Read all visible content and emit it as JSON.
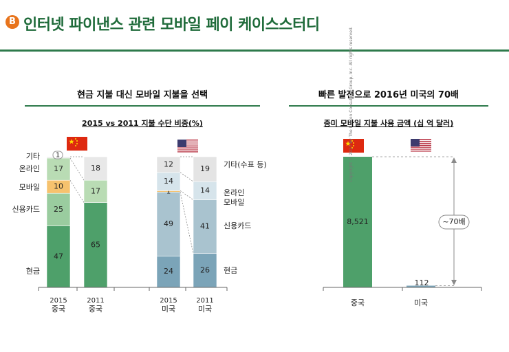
{
  "header": {
    "badge": "B",
    "title": "인터넷 파이낸스 관련 모바일 페이 케이스스터디"
  },
  "left_section": {
    "title": "현금 지불 대신 모바일 지불을 선택",
    "subtitle": "2015 vs 2011 지불 수단 비중(%)"
  },
  "right_section": {
    "title": "빠른 발전으로 2016년 미국의 70배",
    "subtitle": "중미 모바일 지불 사용 금액 (십 억 달러)"
  },
  "copyright": "Copyright © 2017 by The Boston Consulting Group, Inc. All rights reserved.",
  "flags": {
    "china": "china-flag",
    "usa": "usa-flag"
  },
  "colors": {
    "cash": "#4ea06a",
    "credit_cn": "#9acc9f",
    "mobile_cn": "#f6c26e",
    "online_cn": "#b9dcb4",
    "other_cn": "#e8e8e8",
    "cash_us": "#7ba4b8",
    "credit_us": "#a9c3cf",
    "mobile_us": "#f6c26e",
    "online_us": "#d6e4eb",
    "other_us": "#e4e4e4",
    "accent": "#2e7a4b"
  },
  "chart_data": [
    {
      "type": "bar",
      "stacked": true,
      "categories": [
        "2015 중국",
        "2011 중국",
        "2015 미국",
        "2011 미국"
      ],
      "category_labels": [
        [
          "2015",
          "중국"
        ],
        [
          "2011",
          "중국"
        ],
        [
          "2015",
          "미국"
        ],
        [
          "2011",
          "미국"
        ]
      ],
      "series": [
        {
          "name": "현금",
          "values": [
            47,
            65,
            24,
            26
          ]
        },
        {
          "name": "신용카드",
          "values": [
            25,
            0,
            49,
            41
          ]
        },
        {
          "name": "모바일",
          "values": [
            10,
            0,
            1,
            0
          ]
        },
        {
          "name": "온라인",
          "values": [
            17,
            17,
            14,
            14
          ]
        },
        {
          "name": "기타",
          "values": [
            1,
            18,
            12,
            19
          ]
        }
      ],
      "left_legend": [
        "기타",
        "온라인",
        "모바일",
        "신용카드",
        "현금"
      ],
      "right_legend": [
        "기타(수표 등)",
        "온라인\n모바일",
        "신용카드",
        "현금"
      ],
      "ylim": [
        0,
        100
      ]
    },
    {
      "type": "bar",
      "categories": [
        "중국",
        "미국"
      ],
      "values": [
        8521,
        112
      ],
      "value_labels": [
        "8,521",
        "112"
      ],
      "annotation": "~70배",
      "ylim": [
        0,
        8521
      ]
    }
  ]
}
